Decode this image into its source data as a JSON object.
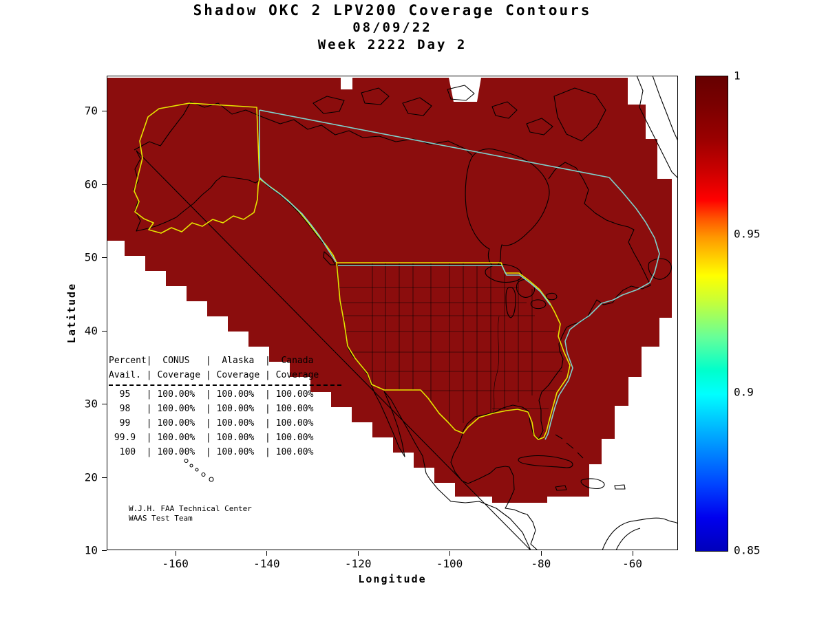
{
  "title": {
    "line1": "Shadow OKC 2 LPV200 Coverage Contours",
    "line2": "08/09/22",
    "line3": "Week 2222 Day 2"
  },
  "axes": {
    "xlabel": "Longitude",
    "ylabel": "Latitude",
    "xticks": [
      -160,
      -140,
      -120,
      -100,
      -80,
      -60
    ],
    "yticks": [
      10,
      20,
      30,
      40,
      50,
      60,
      70
    ],
    "xlim": [
      -175,
      -50
    ],
    "ylim": [
      10,
      74.8
    ]
  },
  "colorbar": {
    "ticks": [
      "1",
      "0.95",
      "0.9",
      "0.85"
    ],
    "min": 0.85,
    "max": 1
  },
  "coverage_table": {
    "headers_row1": [
      "Percent",
      "CONUS",
      "Alaska",
      "Canada"
    ],
    "headers_row2": [
      "Avail.",
      "Coverage",
      "Coverage",
      "Coverage"
    ],
    "rows": [
      [
        "95",
        "100.00%",
        "100.00%",
        "100.00%"
      ],
      [
        "98",
        "100.00%",
        "100.00%",
        "100.00%"
      ],
      [
        "99",
        "100.00%",
        "100.00%",
        "100.00%"
      ],
      [
        "99.9",
        "100.00%",
        "100.00%",
        "100.00%"
      ],
      [
        "100",
        "100.00%",
        "100.00%",
        "100.00%"
      ]
    ]
  },
  "footer": {
    "line1": "W.J.H. FAA Technical Center",
    "line2": "WAAS Test Team"
  },
  "colors": {
    "coverage_fill": "#8b0d0d",
    "contour_yellow": "#e6e600",
    "contour_cyan": "#7fd2cd",
    "coastline": "#000000"
  },
  "chart_data": {
    "type": "heatmap",
    "title": "Shadow OKC 2 LPV200 Coverage Contours",
    "subtitle": "08/09/22",
    "subtitle2": "Week 2222 Day 2",
    "xlabel": "Longitude",
    "ylabel": "Latitude",
    "xlim": [
      -175,
      -50
    ],
    "ylim": [
      10,
      75
    ],
    "xticks": [
      -160,
      -140,
      -120,
      -100,
      -80,
      -60
    ],
    "yticks": [
      10,
      20,
      30,
      40,
      50,
      60,
      70
    ],
    "colorbar_ticks": [
      1,
      0.95,
      0.9,
      0.85
    ],
    "colorbar_range": [
      0.85,
      1
    ],
    "coverage_region_value": 1.0,
    "legend_position": "right-colorbar",
    "grid": false,
    "table": {
      "col_headers": [
        "Percent Avail.",
        "CONUS Coverage",
        "Alaska Coverage",
        "Canada Coverage"
      ],
      "rows": [
        [
          95,
          "100.00%",
          "100.00%",
          "100.00%"
        ],
        [
          98,
          "100.00%",
          "100.00%",
          "100.00%"
        ],
        [
          99,
          "100.00%",
          "100.00%",
          "100.00%"
        ],
        [
          99.9,
          "100.00%",
          "100.00%",
          "100.00%"
        ],
        [
          100,
          "100.00%",
          "100.00%",
          "100.00%"
        ]
      ]
    },
    "annotations": [
      "W.J.H. FAA Technical Center",
      "WAAS Test Team"
    ]
  }
}
